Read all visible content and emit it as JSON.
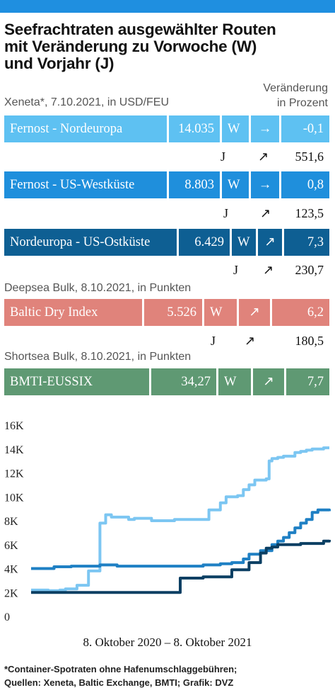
{
  "title": "Seefrachtraten ausgewählter Routen\nmit Veränderung zu Vorwoche (W)\nund Vorjahr (J)",
  "change_header": {
    "line1": "Veränderung",
    "line2": "in Prozent"
  },
  "sections": {
    "xeneta": "Xeneta*, 7.10.2021, in USD/FEU",
    "deepsea": "Deepsea Bulk, 8.10.2021, in Punkten",
    "shortsea": "Shortsea Bulk, 8.10.2021, in Punkten"
  },
  "routes": [
    {
      "name": "Fernost - Nordeuropa",
      "value": "14.035",
      "w_label": "W",
      "w_arrow": "→",
      "w_pct": "-0,1",
      "j_label": "J",
      "j_arrow": "↗",
      "j_pct": "551,6",
      "color": "#5ec1f2"
    },
    {
      "name": "Fernost - US-Westküste",
      "value": "8.803",
      "w_label": "W",
      "w_arrow": "→",
      "w_pct": "0,8",
      "j_label": "J",
      "j_arrow": "↗",
      "j_pct": "123,5",
      "color": "#1f8fdc"
    },
    {
      "name": "Nordeuropa - US-Ostküste",
      "value": "6.429",
      "w_label": "W",
      "w_arrow": "↗",
      "w_pct": "7,3",
      "j_label": "J",
      "j_arrow": "↗",
      "j_pct": "230,7",
      "color": "#0e5f93"
    },
    {
      "name": "Baltic Dry Index",
      "value": "5.526",
      "w_label": "W",
      "w_arrow": "↗",
      "w_pct": "6,2",
      "j_label": "J",
      "j_arrow": "↗",
      "j_pct": "180,5",
      "color": "#e0837b"
    },
    {
      "name": "BMTI-EUSSIX",
      "value": "34,27",
      "w_label": "W",
      "w_arrow": "↗",
      "w_pct": "7,7",
      "color": "#5f9973"
    }
  ],
  "x_range_label": "8. Oktober 2020 – 8. Oktober 2021",
  "footnote": "*Container-Spotraten ohne Hafenumschlaggebühren;\nQuellen: Xeneta, Baltic Exchange, BMTI; Grafik: DVZ",
  "chart_data": {
    "type": "line",
    "title": "",
    "xlabel": "8. Oktober 2020 – 8. Oktober 2021",
    "ylabel": "",
    "ylim": [
      0,
      16000
    ],
    "xlim": [
      0,
      52
    ],
    "yticks": [
      0,
      2000,
      4000,
      6000,
      8000,
      10000,
      12000,
      14000,
      16000
    ],
    "ytick_labels": [
      "0",
      "2K",
      "4K",
      "6K",
      "8K",
      "10K",
      "12K",
      "14K",
      "16K"
    ],
    "grid": false,
    "series": [
      {
        "name": "Fernost - Nordeuropa",
        "color": "#7cc6f2",
        "x": [
          0,
          3,
          5,
          6,
          8,
          10,
          12,
          13,
          14,
          17,
          18,
          21,
          25,
          30,
          31,
          33,
          34,
          36,
          37,
          38,
          39,
          40,
          41,
          41.5,
          42,
          43,
          44,
          45,
          46,
          47,
          48,
          49,
          50,
          51,
          52
        ],
        "y": [
          2200,
          2150,
          2200,
          2300,
          2600,
          3800,
          7800,
          8500,
          8300,
          8100,
          8200,
          8000,
          8100,
          8100,
          8900,
          9500,
          10000,
          10100,
          10600,
          11000,
          11400,
          11400,
          11500,
          13000,
          13200,
          13300,
          13400,
          13400,
          13700,
          13800,
          13900,
          14000,
          14000,
          14100,
          14100
        ]
      },
      {
        "name": "Fernost - US-Westküste",
        "color": "#1f80c4",
        "x": [
          0,
          3,
          4,
          7,
          10,
          12,
          15,
          20,
          27,
          30,
          33,
          35,
          37,
          38,
          40,
          42,
          43,
          44,
          45,
          46,
          47,
          48,
          49,
          50,
          52
        ],
        "y": [
          4000,
          4000,
          4150,
          4200,
          4200,
          4300,
          4200,
          4200,
          4200,
          4300,
          4400,
          4500,
          4800,
          5200,
          5500,
          6000,
          6300,
          6600,
          7000,
          7400,
          7800,
          8100,
          8700,
          8900,
          8800
        ]
      },
      {
        "name": "Nordeuropa - US-Ostküste",
        "color": "#0b3f63",
        "x": [
          0,
          1,
          5,
          10,
          15,
          20,
          25,
          26,
          30,
          35,
          38,
          40,
          41,
          42,
          43,
          44,
          47,
          50,
          51,
          52
        ],
        "y": [
          2000,
          2000,
          2000,
          2000,
          2000,
          2000,
          2000,
          3200,
          3300,
          3900,
          4500,
          5300,
          5700,
          5800,
          6000,
          6000,
          6100,
          6100,
          6300,
          6400
        ]
      }
    ]
  }
}
